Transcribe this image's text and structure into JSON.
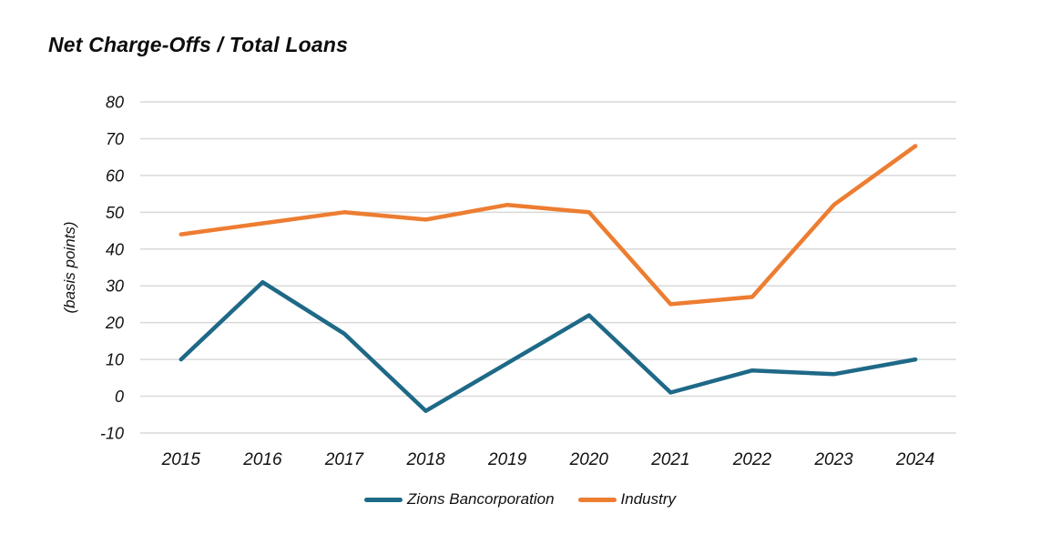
{
  "chart_data": {
    "type": "line",
    "title": "Net Charge-Offs / Total Loans",
    "ylabel": "(basis points)",
    "xlabel": "",
    "categories": [
      "2015",
      "2016",
      "2017",
      "2018",
      "2019",
      "2020",
      "2021",
      "2022",
      "2023",
      "2024"
    ],
    "series": [
      {
        "name": "Zions Bancorporation",
        "color": "#1E6987",
        "values": [
          10,
          31,
          17,
          -4,
          9,
          22,
          1,
          7,
          6,
          10
        ]
      },
      {
        "name": "Industry",
        "color": "#ED7D31",
        "values": [
          44,
          47,
          50,
          48,
          52,
          50,
          25,
          27,
          52,
          68
        ]
      }
    ],
    "ylim": [
      -10,
      80
    ],
    "yticks": [
      80,
      70,
      60,
      50,
      40,
      30,
      20,
      10,
      0,
      -10
    ],
    "grid": "horizontal-only",
    "gridline_color": "#D9D9D9",
    "legend_position": "bottom",
    "axis_text_color": "#111111"
  }
}
